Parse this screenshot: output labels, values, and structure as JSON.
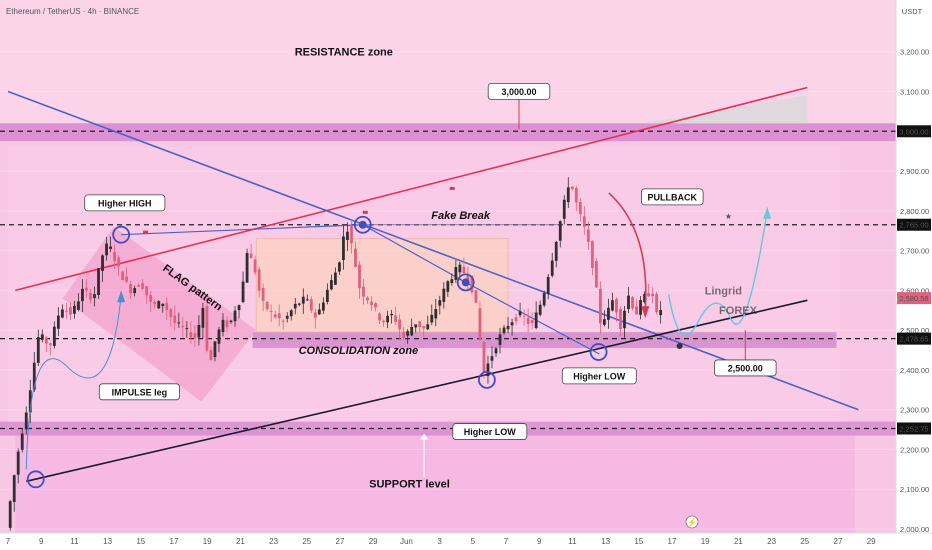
{
  "header": {
    "symbol_line": "Ethereum / TetherUS · 4h · BINANCE",
    "currency": "USDT"
  },
  "watermark": {
    "line1": "Lingrid",
    "line2": "FOREX"
  },
  "colors": {
    "background": "#ffffff",
    "plot_bg": "#f8c7e4",
    "bull": "#2f2f2f",
    "bear": "#e0607e",
    "trend_red": "#e43158",
    "trend_blue": "#4a62c9",
    "support_line": "#1a1a2e",
    "zone_purple": "#c873c0",
    "arrow_cyan": "#64c8d8"
  },
  "chart_data": {
    "type": "candlestick",
    "title": "Ethereum / TetherUS · 4h · BINANCE",
    "xlabel": "",
    "ylabel": "USDT",
    "ylim": [
      1990,
      3330
    ],
    "x_ticks": [
      "7",
      "9",
      "11",
      "13",
      "15",
      "17",
      "19",
      "21",
      "23",
      "25",
      "27",
      "29",
      "Jun",
      "3",
      "5",
      "7",
      "9",
      "11",
      "13",
      "15",
      "17",
      "19",
      "21",
      "23",
      "25",
      "27",
      "29"
    ],
    "y_ticks": [
      2000,
      2100,
      2200,
      2300,
      2400,
      2500,
      2600,
      2700,
      2800,
      2900,
      3000,
      3100,
      3200
    ],
    "price_tags": [
      {
        "value": 3000.0,
        "label": "3,000.00",
        "color": "#111111"
      },
      {
        "value": 2765.0,
        "label": "2,765.00",
        "color": "#111111"
      },
      {
        "value": 2580.58,
        "label": "2,580.58",
        "color": "#e0607e"
      },
      {
        "value": 2478.65,
        "label": "2,478.65",
        "color": "#111111"
      },
      {
        "value": 2252.75,
        "label": "2,252.75",
        "color": "#111111"
      }
    ],
    "price_path": [
      [
        0,
        2000
      ],
      [
        1.5,
        2180
      ],
      [
        3,
        2320
      ],
      [
        4.5,
        2490
      ],
      [
        6,
        2460
      ],
      [
        7.5,
        2560
      ],
      [
        9,
        2540
      ],
      [
        10.5,
        2600
      ],
      [
        12,
        2580
      ],
      [
        13,
        2680
      ],
      [
        14,
        2720
      ],
      [
        15.5,
        2650
      ],
      [
        17,
        2600
      ],
      [
        18.5,
        2620
      ],
      [
        20,
        2560
      ],
      [
        21.5,
        2570
      ],
      [
        23,
        2520
      ],
      [
        24.5,
        2500
      ],
      [
        26,
        2480
      ],
      [
        27,
        2560
      ],
      [
        27.8,
        2400
      ],
      [
        28.6,
        2470
      ],
      [
        29.6,
        2520
      ],
      [
        30.6,
        2510
      ],
      [
        31.4,
        2555
      ],
      [
        32.2,
        2580
      ],
      [
        33,
        2700
      ],
      [
        34,
        2660
      ],
      [
        35,
        2570
      ],
      [
        36.5,
        2540
      ],
      [
        38,
        2520
      ],
      [
        39.5,
        2560
      ],
      [
        41,
        2580
      ],
      [
        42.5,
        2530
      ],
      [
        44,
        2600
      ],
      [
        45.5,
        2660
      ],
      [
        46.6,
        2770
      ],
      [
        47.5,
        2700
      ],
      [
        48.5,
        2600
      ],
      [
        50,
        2570
      ],
      [
        51.5,
        2520
      ],
      [
        53,
        2540
      ],
      [
        54.5,
        2480
      ],
      [
        56,
        2520
      ],
      [
        57.5,
        2500
      ],
      [
        59,
        2560
      ],
      [
        60.5,
        2620
      ],
      [
        62,
        2660
      ],
      [
        63.5,
        2630
      ],
      [
        64.5,
        2550
      ],
      [
        65.4,
        2390
      ],
      [
        66.4,
        2430
      ],
      [
        67.5,
        2480
      ],
      [
        69,
        2520
      ],
      [
        70.5,
        2540
      ],
      [
        72,
        2510
      ],
      [
        73.5,
        2580
      ],
      [
        74.8,
        2680
      ],
      [
        76,
        2780
      ],
      [
        77.2,
        2880
      ],
      [
        78.4,
        2800
      ],
      [
        79.5,
        2740
      ],
      [
        80.6,
        2640
      ],
      [
        81.4,
        2520
      ],
      [
        82.3,
        2540
      ],
      [
        83.2,
        2580
      ],
      [
        84.2,
        2510
      ],
      [
        85.2,
        2590
      ],
      [
        86.3,
        2540
      ],
      [
        87.2,
        2580
      ],
      [
        88.5,
        2600
      ],
      [
        89.3,
        2520
      ],
      [
        90,
        2580
      ]
    ],
    "series": [
      {
        "name": "",
        "kind": "trendline",
        "color": "#e43158",
        "points": [
          [
            1,
            2600
          ],
          [
            109.5,
            3110
          ]
        ]
      },
      {
        "name": "",
        "kind": "trendline",
        "color": "#4a62c9",
        "points": [
          [
            0,
            3100
          ],
          [
            116.5,
            2300
          ]
        ]
      },
      {
        "name": "",
        "kind": "trendline",
        "color": "#1a1a2e",
        "points": [
          [
            2.5,
            2120
          ],
          [
            109.5,
            2575
          ]
        ]
      },
      {
        "name": "",
        "kind": "trendline",
        "color": "#4a62c9",
        "points": [
          [
            15.5,
            2740
          ],
          [
            48.6,
            2765
          ],
          [
            62.7,
            2620
          ],
          [
            81,
            2440
          ]
        ]
      }
    ],
    "zones": [
      {
        "from": 2975,
        "to": 3020,
        "kind": "resistance"
      },
      {
        "from": 2455,
        "to": 2495,
        "kind": "consolidation"
      },
      {
        "from": 2235,
        "to": 2270,
        "kind": "support"
      }
    ],
    "annotations": [
      {
        "text": "RESISTANCE zone",
        "x": 46,
        "y": 3190
      },
      {
        "text": "Higher HIGH",
        "x": 16,
        "y": 2820
      },
      {
        "text": "FLAG pattern",
        "x": 25,
        "y": 2600
      },
      {
        "text": "IMPULSE leg",
        "x": 18,
        "y": 2345
      },
      {
        "text": "CONSOLIDATION zone",
        "x": 48,
        "y": 2440
      },
      {
        "text": "Fake Break",
        "x": 62,
        "y": 2780
      },
      {
        "text": "PULLBACK",
        "x": 91,
        "y": 2835
      },
      {
        "text": "3,000.00",
        "x": 70,
        "y": 3100
      },
      {
        "text": "2,500.00",
        "x": 101,
        "y": 2405
      },
      {
        "text": "Higher LOW",
        "x": 81,
        "y": 2385
      },
      {
        "text": "Higher LOW",
        "x": 66,
        "y": 2245
      },
      {
        "text": "SUPPORT level",
        "x": 55,
        "y": 2105
      }
    ]
  }
}
